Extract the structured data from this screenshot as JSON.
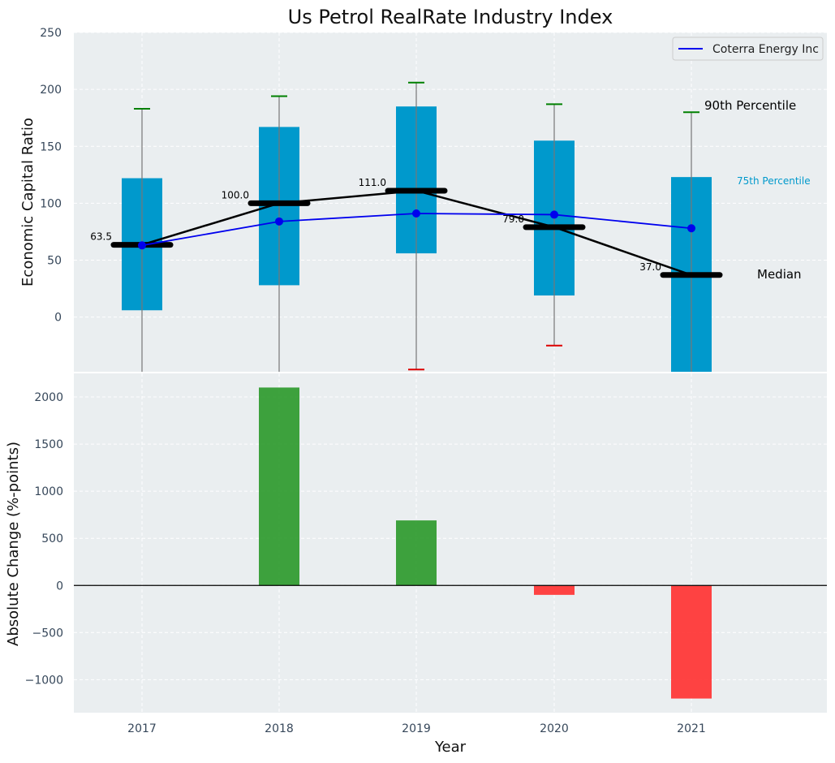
{
  "chart_data": [
    {
      "type": "box",
      "title": "Us Petrol RealRate Industry Index",
      "ylabel": "Economic Capital Ratio",
      "ylim": [
        -48,
        250
      ],
      "yticks": [
        0,
        50,
        100,
        150,
        200,
        250
      ],
      "categories": [
        "2017",
        "2018",
        "2019",
        "2020",
        "2021"
      ],
      "boxes": [
        {
          "year": "2017",
          "p10": -48,
          "p25": 6,
          "median": 63.5,
          "p75": 122,
          "p90": 183
        },
        {
          "year": "2018",
          "p10": -48,
          "p25": 28,
          "median": 100.0,
          "p75": 167,
          "p90": 194
        },
        {
          "year": "2019",
          "p10": -46,
          "p25": 56,
          "median": 111.0,
          "p75": 185,
          "p90": 206
        },
        {
          "year": "2020",
          "p10": -25,
          "p25": 19,
          "median": 79.0,
          "p75": 155,
          "p90": 187
        },
        {
          "year": "2021",
          "p10": -48,
          "p25": -48,
          "median": 37.0,
          "p75": 123,
          "p90": 180
        }
      ],
      "median_labels": [
        "63.5",
        "100.0",
        "111.0",
        "79.0",
        "37.0"
      ],
      "series": [
        {
          "name": "Coterra Energy Inc",
          "values": [
            63,
            84,
            91,
            90,
            78
          ],
          "color": "#0000ee"
        }
      ],
      "annotations": {
        "p90": "90th Percentile",
        "p75": "75th Percentile",
        "median": "Median"
      },
      "legend": "top-right",
      "grid": true
    },
    {
      "type": "bar",
      "ylabel": "Absolute Change (%-points)",
      "xlabel": "Year",
      "ylim": [
        -1350,
        2250
      ],
      "yticks": [
        -1000,
        -500,
        0,
        500,
        1000,
        1500,
        2000
      ],
      "categories": [
        "2017",
        "2018",
        "2019",
        "2020",
        "2021"
      ],
      "values": [
        0,
        2100,
        690,
        -100,
        -1200
      ],
      "grid": true
    }
  ],
  "colors": {
    "box": "#0099cc",
    "median": "#000000",
    "positive": "#2e9a2e",
    "negative": "#ff3333",
    "whisker_top": "#008000",
    "whisker_bottom": "#dd0000",
    "background": "#eaeef0",
    "tick": "#36475a",
    "annotation_p75": "#0099cc"
  }
}
